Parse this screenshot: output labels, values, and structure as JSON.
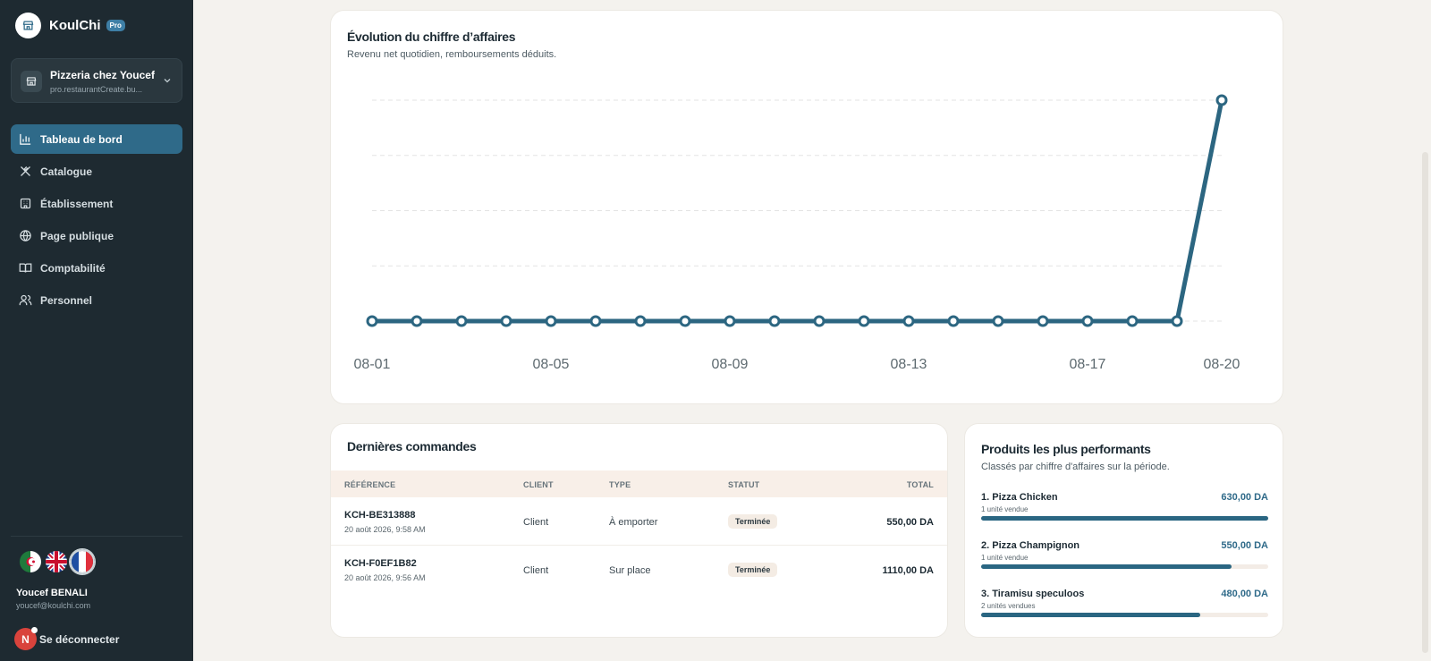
{
  "app": {
    "name": "KoulChi",
    "badge": "Pro"
  },
  "store": {
    "name": "Pizzeria chez Youcef",
    "subtitle": "pro.restaurantCreate.bu..."
  },
  "nav": [
    {
      "label": "Tableau de bord",
      "icon": "bar-chart-icon",
      "active": true
    },
    {
      "label": "Catalogue",
      "icon": "utensils-icon",
      "active": false
    },
    {
      "label": "Établissement",
      "icon": "building-icon",
      "active": false
    },
    {
      "label": "Page publique",
      "icon": "globe-icon",
      "active": false
    },
    {
      "label": "Comptabilité",
      "icon": "book-icon",
      "active": false
    },
    {
      "label": "Personnel",
      "icon": "users-icon",
      "active": false
    }
  ],
  "languages": [
    {
      "code": "ar",
      "icon": "flag-algeria-icon"
    },
    {
      "code": "en",
      "icon": "flag-uk-icon"
    },
    {
      "code": "fr",
      "icon": "flag-france-icon",
      "selected": true
    }
  ],
  "user": {
    "name": "Youcef BENALI",
    "email": "youcef@koulchi.com",
    "initial": "N",
    "logout_label": "Se déconnecter"
  },
  "revenue": {
    "title": "Évolution du chiffre d’affaires",
    "subtitle": "Revenu net quotidien, remboursements déduits."
  },
  "chart_data": {
    "type": "line",
    "x": [
      "08-01",
      "08-02",
      "08-03",
      "08-04",
      "08-05",
      "08-06",
      "08-07",
      "08-08",
      "08-09",
      "08-10",
      "08-11",
      "08-12",
      "08-13",
      "08-14",
      "08-15",
      "08-16",
      "08-17",
      "08-18",
      "08-19",
      "08-20"
    ],
    "x_tick_labels": [
      "08-01",
      "08-05",
      "08-09",
      "08-13",
      "08-17",
      "08-20"
    ],
    "series": [
      {
        "values": [
          0,
          0,
          0,
          0,
          0,
          0,
          0,
          0,
          0,
          0,
          0,
          0,
          0,
          0,
          0,
          0,
          0,
          0,
          0,
          1660
        ]
      }
    ],
    "ylim": [
      0,
      1660
    ],
    "grid": true,
    "color": "#2c6681"
  },
  "orders": {
    "title": "Dernières commandes",
    "columns": [
      "RÉFÉRENCE",
      "CLIENT",
      "TYPE",
      "STATUT",
      "TOTAL"
    ],
    "rows": [
      {
        "ref": "KCH-BE313888",
        "date": "20 août 2026, 9:58 AM",
        "client": "Client",
        "type": "À emporter",
        "status": "Terminée",
        "total": "550,00 DA"
      },
      {
        "ref": "KCH-F0EF1B82",
        "date": "20 août 2026, 9:56 AM",
        "client": "Client",
        "type": "Sur place",
        "status": "Terminée",
        "total": "1110,00 DA"
      }
    ]
  },
  "products": {
    "title": "Produits les plus performants",
    "subtitle": "Classés par chiffre d'affaires sur la période.",
    "items": [
      {
        "name": "1. Pizza Chicken",
        "units": "1 unité vendue",
        "value": "630,00 DA",
        "share": 1.0
      },
      {
        "name": "2. Pizza Champignon",
        "units": "1 unité vendue",
        "value": "550,00 DA",
        "share": 0.873
      },
      {
        "name": "3. Tiramisu speculoos",
        "units": "2 unités vendues",
        "value": "480,00 DA",
        "share": 0.762
      }
    ]
  }
}
